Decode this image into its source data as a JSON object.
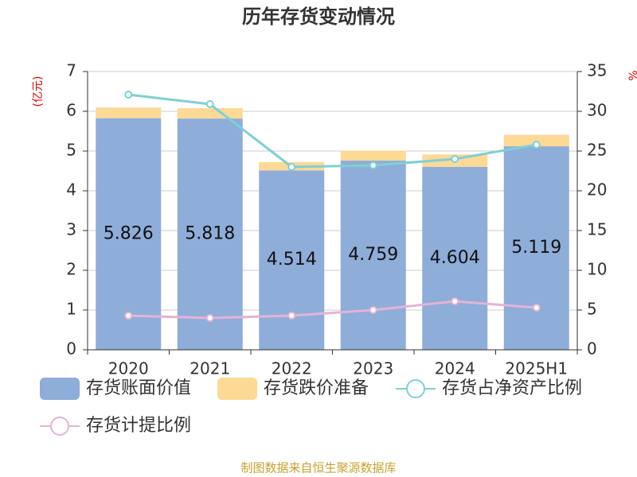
{
  "chart_data": {
    "type": "bar",
    "title": "历年存货变动情况",
    "ylabel": "(亿元)",
    "y2label": "%",
    "categories": [
      "2020",
      "2021",
      "2022",
      "2023",
      "2024",
      "2025H1"
    ],
    "ylim": [
      0,
      7
    ],
    "yticks": [
      0,
      1,
      2,
      3,
      4,
      5,
      6,
      7
    ],
    "y2lim": [
      0,
      35
    ],
    "y2ticks": [
      0,
      5,
      10,
      15,
      20,
      25,
      30,
      35
    ],
    "grid": true,
    "series": [
      {
        "name": "存货账面价值",
        "type": "bar",
        "color": "#8eadd9",
        "values": [
          5.826,
          5.818,
          4.514,
          4.759,
          4.604,
          5.119
        ]
      },
      {
        "name": "存货跌价准备",
        "type": "bar",
        "color": "#fdd996",
        "values": [
          0.27,
          0.26,
          0.21,
          0.25,
          0.31,
          0.29
        ]
      },
      {
        "name": "存货占净资产比例",
        "type": "line",
        "axis": "y2",
        "color": "#7fd0d4",
        "values": [
          32.1,
          30.9,
          23.0,
          23.2,
          24.0,
          25.8
        ]
      },
      {
        "name": "存货计提比例",
        "type": "line",
        "axis": "y2",
        "color": "#e4b3d6",
        "values": [
          4.3,
          4.0,
          4.3,
          5.0,
          6.1,
          5.3
        ]
      }
    ],
    "source": "制图数据来自恒生聚源数据库"
  }
}
